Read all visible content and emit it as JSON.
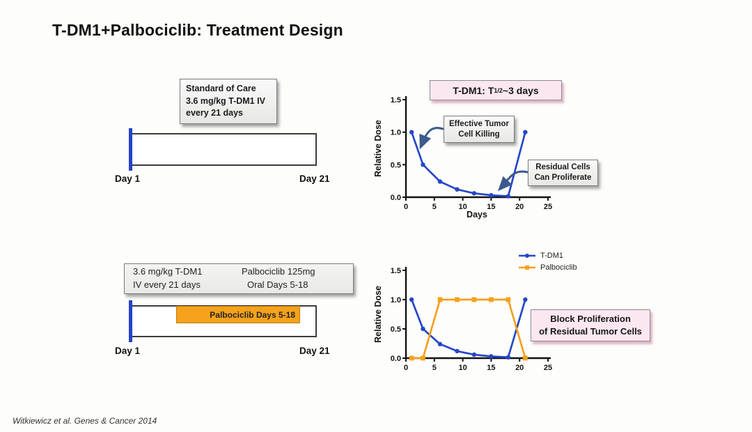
{
  "title": "T-DM1+Palbociclib: Treatment Design",
  "footer": "Witkiewicz et al. Genes & Cancer 2014",
  "colors": {
    "tdm1_blue": "#2646c8",
    "palbociclib_orange": "#f5a01e",
    "pink_box_bg": "#fbe7f0",
    "arrow_blue": "#3b5b8e"
  },
  "soc_box": {
    "lines": [
      "Standard of Care",
      "3.6 mg/kg T-DM1  IV",
      "every 21 days"
    ]
  },
  "combo_box": {
    "left_lines": [
      "3.6 mg/kg T-DM1",
      "IV every 21 days"
    ],
    "right_lines": [
      "Palbociclib 125mg",
      "Oral Days 5-18"
    ]
  },
  "timeline_top": {
    "start_label": "Day 1",
    "end_label": "Day 21"
  },
  "timeline_bottom": {
    "start_label": "Day 1",
    "end_label": "Day 21",
    "palbo_bar_label": "Palbociclib  Days 5-18"
  },
  "chart_data": [
    {
      "id": "tdm1-single-agent",
      "type": "line",
      "title_box": {
        "pre": "T-DM1: T",
        "sub": "1/2",
        "post": " ~3 days"
      },
      "xlabel": "Days",
      "ylabel": "Relative Dose",
      "xlim": [
        0,
        25
      ],
      "ylim": [
        0,
        1.5
      ],
      "x_ticks": [
        0,
        5,
        10,
        15,
        20,
        25
      ],
      "y_ticks": [
        0,
        0.5,
        1,
        1.5
      ],
      "y_tick_labels": [
        "0.0",
        "0.5",
        "1.0",
        "1.5"
      ],
      "series": [
        {
          "name": "T-DM1",
          "color": "#2646c8",
          "marker": "circle",
          "x": [
            1,
            3,
            6,
            9,
            12,
            15,
            18,
            21
          ],
          "y": [
            1.0,
            0.5,
            0.24,
            0.12,
            0.06,
            0.03,
            0.015,
            1.0
          ]
        }
      ],
      "annotations": [
        {
          "text_lines": [
            "Effective Tumor",
            "Cell Killing"
          ]
        },
        {
          "text_lines": [
            "Residual Cells",
            "Can Proliferate"
          ]
        }
      ]
    },
    {
      "id": "tdm1-plus-palbociclib",
      "type": "line",
      "xlabel": "",
      "ylabel": "Relative Dose",
      "xlim": [
        0,
        25
      ],
      "ylim": [
        0,
        1.5
      ],
      "x_ticks": [
        0,
        5,
        10,
        15,
        20,
        25
      ],
      "y_ticks": [
        0,
        0.5,
        1,
        1.5
      ],
      "y_tick_labels": [
        "0.0",
        "0.5",
        "1.0",
        "1.5"
      ],
      "legend_position": "top-right",
      "series": [
        {
          "name": "T-DM1",
          "color": "#2646c8",
          "marker": "circle",
          "x": [
            1,
            3,
            6,
            9,
            12,
            15,
            18,
            21
          ],
          "y": [
            1.0,
            0.5,
            0.24,
            0.12,
            0.06,
            0.03,
            0.015,
            1.0
          ]
        },
        {
          "name": "Palbociclib",
          "color": "#f5a01e",
          "marker": "square",
          "x": [
            1,
            3,
            6,
            9,
            12,
            15,
            18,
            21
          ],
          "y": [
            0,
            0,
            1.0,
            1.0,
            1.0,
            1.0,
            1.0,
            0
          ]
        }
      ],
      "annotations": [
        {
          "text_lines": [
            "Block Proliferation",
            "of Residual Tumor Cells"
          ]
        }
      ]
    }
  ]
}
